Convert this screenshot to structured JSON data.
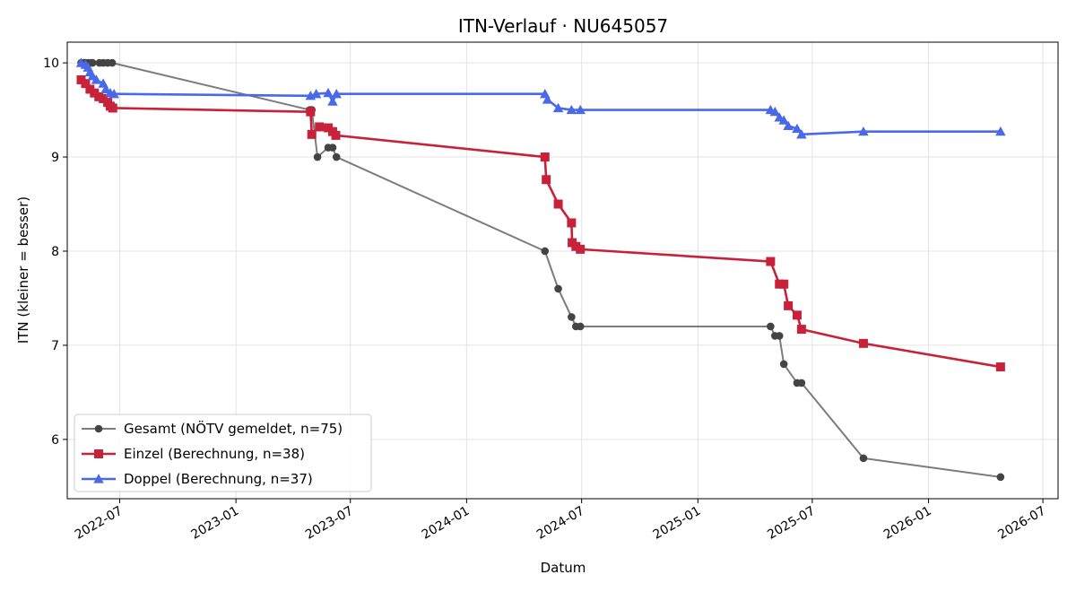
{
  "chart_data": {
    "type": "line",
    "title": "ITN-Verlauf · NU645057",
    "xlabel": "Datum",
    "ylabel": "ITN  (kleiner = besser)",
    "xlim": [
      "2022-04-09",
      "2026-07-25"
    ],
    "ylim": [
      5.37,
      10.22
    ],
    "x_ticks": [
      "2022-07",
      "2023-01",
      "2023-07",
      "2024-01",
      "2024-07",
      "2025-01",
      "2025-07",
      "2026-01",
      "2026-07"
    ],
    "y_ticks": [
      6,
      7,
      8,
      9,
      10
    ],
    "grid": true,
    "legend_position": "lower left",
    "series": [
      {
        "name": "Gesamt (NÖTV gemeldet, n=75)",
        "color": "#444444",
        "marker": "circle",
        "points": [
          [
            "2022-05-01",
            10.0
          ],
          [
            "2022-05-05",
            10.0
          ],
          [
            "2022-05-08",
            10.0
          ],
          [
            "2022-05-12",
            10.0
          ],
          [
            "2022-05-16",
            10.0
          ],
          [
            "2022-05-19",
            10.0
          ],
          [
            "2022-05-30",
            10.0
          ],
          [
            "2022-06-05",
            10.0
          ],
          [
            "2022-06-12",
            10.0
          ],
          [
            "2022-06-19",
            10.0
          ],
          [
            "2023-04-28",
            9.5
          ],
          [
            "2023-05-01",
            9.5
          ],
          [
            "2023-05-10",
            9.0
          ],
          [
            "2023-05-27",
            9.1
          ],
          [
            "2023-06-03",
            9.1
          ],
          [
            "2023-06-09",
            9.0
          ],
          [
            "2024-05-04",
            8.0
          ],
          [
            "2024-05-25",
            7.6
          ],
          [
            "2024-06-15",
            7.3
          ],
          [
            "2024-06-22",
            7.2
          ],
          [
            "2024-06-29",
            7.2
          ],
          [
            "2025-04-26",
            7.2
          ],
          [
            "2025-05-03",
            7.1
          ],
          [
            "2025-05-10",
            7.1
          ],
          [
            "2025-05-17",
            6.8
          ],
          [
            "2025-06-07",
            6.6
          ],
          [
            "2025-06-14",
            6.6
          ],
          [
            "2025-09-20",
            5.8
          ],
          [
            "2026-04-25",
            5.6
          ]
        ]
      },
      {
        "name": "Einzel (Berechnung, n=38)",
        "color": "#c8223a",
        "marker": "square",
        "points": [
          [
            "2022-05-01",
            9.82
          ],
          [
            "2022-05-08",
            9.78
          ],
          [
            "2022-05-15",
            9.72
          ],
          [
            "2022-05-22",
            9.68
          ],
          [
            "2022-05-29",
            9.64
          ],
          [
            "2022-06-05",
            9.62
          ],
          [
            "2022-06-12",
            9.58
          ],
          [
            "2022-06-16",
            9.54
          ],
          [
            "2022-06-20",
            9.52
          ],
          [
            "2023-04-29",
            9.48
          ],
          [
            "2023-05-01",
            9.24
          ],
          [
            "2023-05-13",
            9.32
          ],
          [
            "2023-05-27",
            9.31
          ],
          [
            "2023-06-03",
            9.27
          ],
          [
            "2023-06-08",
            9.23
          ],
          [
            "2024-05-04",
            9.0
          ],
          [
            "2024-05-06",
            8.76
          ],
          [
            "2024-05-25",
            8.5
          ],
          [
            "2024-06-15",
            8.3
          ],
          [
            "2024-06-16",
            8.09
          ],
          [
            "2024-06-22",
            8.05
          ],
          [
            "2024-06-29",
            8.02
          ],
          [
            "2025-04-26",
            7.89
          ],
          [
            "2025-05-10",
            7.65
          ],
          [
            "2025-05-17",
            7.65
          ],
          [
            "2025-05-24",
            7.42
          ],
          [
            "2025-06-07",
            7.32
          ],
          [
            "2025-06-14",
            7.17
          ],
          [
            "2025-09-20",
            7.02
          ],
          [
            "2026-04-25",
            6.77
          ]
        ]
      },
      {
        "name": "Doppel (Berechnung, n=37)",
        "color": "#4a69e8",
        "marker": "triangle",
        "points": [
          [
            "2022-05-01",
            10.0
          ],
          [
            "2022-05-08",
            9.98
          ],
          [
            "2022-05-12",
            9.95
          ],
          [
            "2022-05-15",
            9.9
          ],
          [
            "2022-05-19",
            9.86
          ],
          [
            "2022-05-25",
            9.82
          ],
          [
            "2022-06-05",
            9.78
          ],
          [
            "2022-06-09",
            9.72
          ],
          [
            "2022-06-16",
            9.68
          ],
          [
            "2022-06-22",
            9.67
          ],
          [
            "2023-04-29",
            9.65
          ],
          [
            "2023-05-08",
            9.67
          ],
          [
            "2023-05-27",
            9.68
          ],
          [
            "2023-06-03",
            9.59
          ],
          [
            "2023-06-09",
            9.67
          ],
          [
            "2024-05-04",
            9.67
          ],
          [
            "2024-05-08",
            9.61
          ],
          [
            "2024-05-25",
            9.52
          ],
          [
            "2024-06-15",
            9.5
          ],
          [
            "2024-06-29",
            9.5
          ],
          [
            "2025-04-26",
            9.5
          ],
          [
            "2025-05-03",
            9.48
          ],
          [
            "2025-05-10",
            9.42
          ],
          [
            "2025-05-17",
            9.39
          ],
          [
            "2025-05-24",
            9.33
          ],
          [
            "2025-06-07",
            9.3
          ],
          [
            "2025-06-14",
            9.24
          ],
          [
            "2025-09-20",
            9.27
          ],
          [
            "2026-04-25",
            9.27
          ]
        ]
      }
    ]
  }
}
